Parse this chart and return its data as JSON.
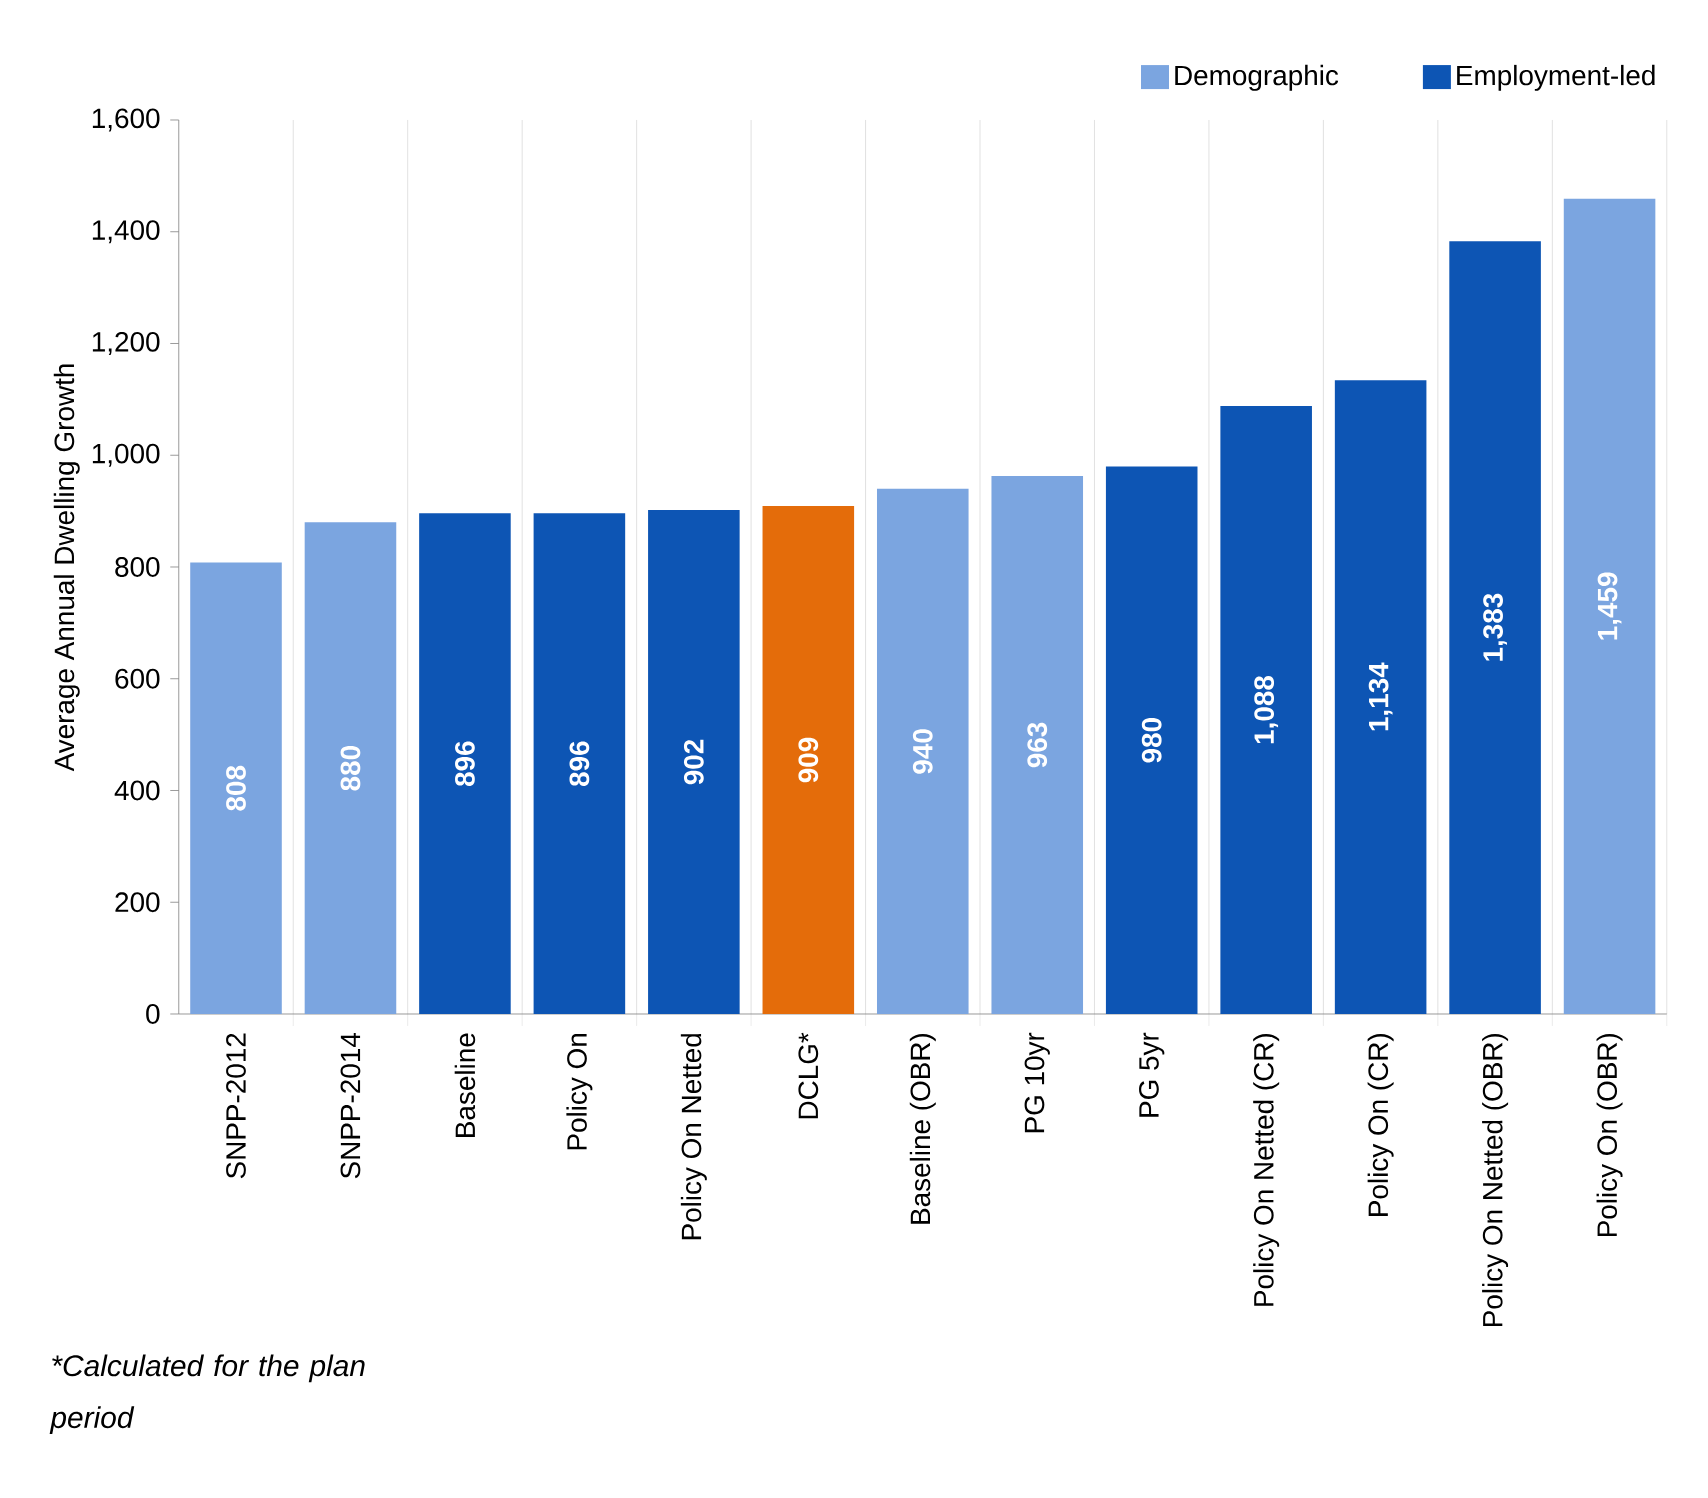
{
  "chart_data": {
    "type": "bar",
    "ylabel": "Average Annual Dwelling Growth",
    "categories": [
      "SNPP-2012",
      "SNPP-2014",
      "Baseline",
      "Policy On",
      "Policy On Netted",
      "DCLG*",
      "Baseline (OBR)",
      "PG 10yr",
      "PG 5yr",
      "Policy On Netted (CR)",
      "Policy On (CR)",
      "Policy On Netted (OBR)",
      "Policy On (OBR)"
    ],
    "series": [
      {
        "name": "Demographic",
        "color": "#7ba5e0",
        "values": [
          808,
          880,
          null,
          null,
          null,
          null,
          940,
          963,
          null,
          null,
          null,
          null,
          1459
        ],
        "value_labels": [
          "808",
          "880",
          null,
          null,
          null,
          null,
          "940",
          "963",
          null,
          null,
          null,
          null,
          "1,459"
        ]
      },
      {
        "name": "Employment-led",
        "color": "#0d55b4",
        "values": [
          null,
          null,
          896,
          896,
          902,
          null,
          null,
          null,
          980,
          1088,
          1134,
          1383,
          null
        ],
        "value_labels": [
          null,
          null,
          "896",
          "896",
          "902",
          null,
          null,
          null,
          "980",
          "1,088",
          "1,134",
          "1,383",
          null
        ]
      },
      {
        "color": "#e46c0a",
        "values": [
          null,
          null,
          null,
          null,
          null,
          909,
          null,
          null,
          null,
          null,
          null,
          null,
          null
        ],
        "value_labels": [
          null,
          null,
          null,
          null,
          null,
          "909",
          null,
          null,
          null,
          null,
          null,
          null,
          null
        ]
      }
    ],
    "ylim": [
      0,
      1600
    ],
    "yticks": [
      0,
      200,
      400,
      600,
      800,
      {
        "value": 1000,
        "label": "1,000"
      },
      {
        "value": 1200,
        "label": "1,200"
      },
      {
        "value": 1400,
        "label": "1,400"
      },
      {
        "value": 1600,
        "label": "1,600"
      }
    ],
    "grid": "x",
    "legend": "top right",
    "annotations": [
      "*Calculated for the plan period"
    ]
  }
}
